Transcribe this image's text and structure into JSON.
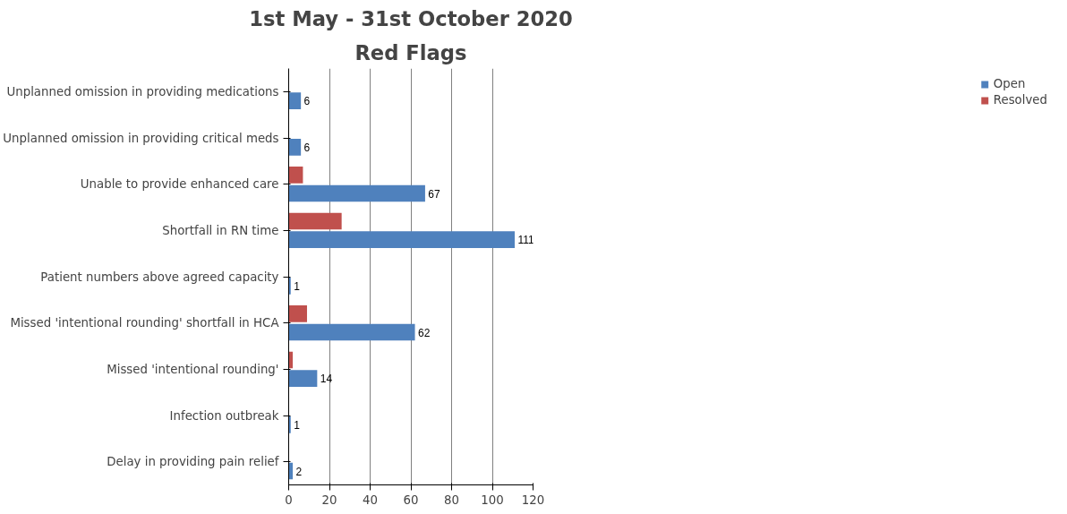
{
  "chart_data": {
    "type": "bar",
    "orientation": "horizontal",
    "title": "1st May - 31st October 2020",
    "subtitle": "Red Flags",
    "categories": [
      "Unplanned omission in providing medications",
      "Unplanned omission in providing critical meds",
      "Unable to provide enhanced care",
      "Shortfall in RN time",
      "Patient numbers above agreed capacity",
      "Missed 'intentional rounding' shortfall in HCA",
      "Missed 'intentional rounding'",
      "Infection outbreak",
      "Delay in providing pain relief"
    ],
    "series": [
      {
        "name": "Resolved",
        "color": "#c0504d",
        "values": [
          null,
          null,
          7,
          26,
          null,
          9,
          2,
          null,
          null
        ]
      },
      {
        "name": "Open",
        "color": "#4f81bd",
        "values": [
          6,
          6,
          67,
          111,
          1,
          62,
          14,
          1,
          2
        ],
        "value_labels": [
          "6",
          "6",
          "67",
          "111",
          "1",
          "62",
          "14",
          "1",
          "2"
        ]
      }
    ],
    "xlim": [
      0,
      120
    ],
    "xticks": [
      0,
      20,
      40,
      60,
      80,
      100,
      120
    ],
    "grid": "x",
    "legend": "right"
  }
}
